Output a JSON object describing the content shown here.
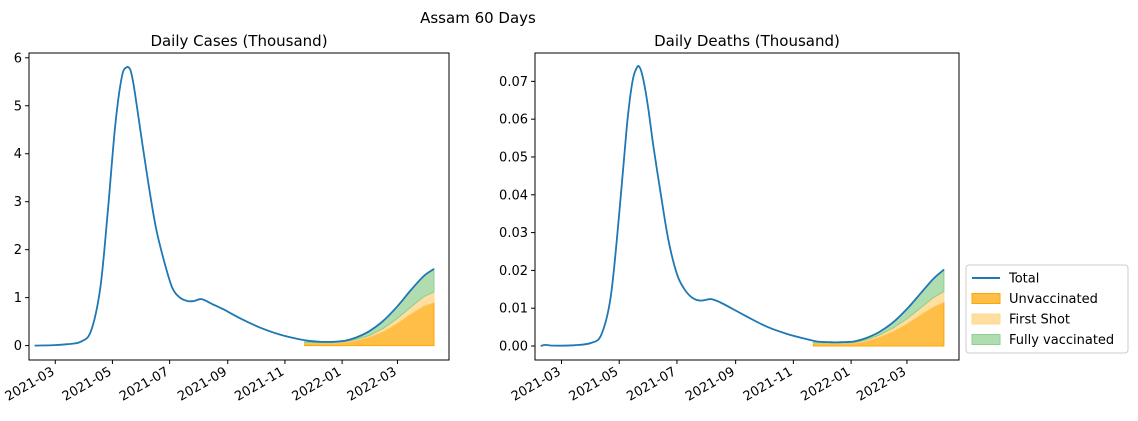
{
  "figure": {
    "suptitle": "Assam 60 Days"
  },
  "legend": {
    "placement": "right",
    "entries": [
      {
        "label": "Total",
        "color": "#1f77b4",
        "kind": "line"
      },
      {
        "label": "Unvaccinated",
        "color": "#ffa500",
        "kind": "patch"
      },
      {
        "label": "First Shot",
        "color": "#f5c26b",
        "kind": "patch"
      },
      {
        "label": "Fully vaccinated",
        "color": "#5cb85c",
        "kind": "patch"
      }
    ]
  },
  "colors": {
    "total": "#1f77b4",
    "unvaccinated": "#ffa500",
    "first_shot": "#ffd78a",
    "fully_vaccinated": "#8fcf8f"
  },
  "chart_data": [
    {
      "type": "line",
      "title": "Daily Cases (Thousand)",
      "xlabel": "",
      "ylabel": "",
      "x_is_date": true,
      "xlim": [
        "2021-02-01",
        "2022-04-25"
      ],
      "ylim": [
        -0.3,
        6.1
      ],
      "yticks": [
        0,
        1,
        2,
        3,
        4,
        5,
        6
      ],
      "ytick_labels": [
        "0",
        "1",
        "2",
        "3",
        "4",
        "5",
        "6"
      ],
      "xticks": [
        "2021-03-01",
        "2021-05-01",
        "2021-07-01",
        "2021-09-01",
        "2021-11-01",
        "2022-01-01",
        "2022-03-01"
      ],
      "xtick_labels": [
        "2021-03",
        "2021-05",
        "2021-07",
        "2021-09",
        "2021-11",
        "2022-01",
        "2022-03"
      ],
      "grid": false,
      "total": {
        "x": [
          "2021-02-07",
          "2021-02-28",
          "2021-03-14",
          "2021-03-28",
          "2021-04-08",
          "2021-04-18",
          "2021-04-26",
          "2021-05-04",
          "2021-05-11",
          "2021-05-16",
          "2021-05-20",
          "2021-05-23",
          "2021-05-27",
          "2021-06-02",
          "2021-06-09",
          "2021-06-17",
          "2021-06-26",
          "2021-07-04",
          "2021-07-12",
          "2021-07-20",
          "2021-07-27",
          "2021-08-04",
          "2021-08-14",
          "2021-08-28",
          "2021-09-15",
          "2021-10-05",
          "2021-10-25",
          "2021-11-12",
          "2021-11-26",
          "2021-12-09",
          "2021-12-22",
          "2022-01-04",
          "2022-01-16",
          "2022-01-30",
          "2022-02-14",
          "2022-03-01",
          "2022-03-15",
          "2022-03-29",
          "2022-04-09"
        ],
        "y": [
          0.0,
          0.01,
          0.03,
          0.08,
          0.3,
          1.2,
          2.8,
          4.6,
          5.6,
          5.8,
          5.75,
          5.5,
          5.0,
          4.2,
          3.3,
          2.4,
          1.7,
          1.2,
          1.0,
          0.93,
          0.93,
          0.97,
          0.88,
          0.75,
          0.56,
          0.38,
          0.24,
          0.15,
          0.1,
          0.08,
          0.08,
          0.1,
          0.17,
          0.3,
          0.52,
          0.82,
          1.15,
          1.45,
          1.6
        ]
      },
      "stack": {
        "x": [
          "2021-11-22",
          "2021-12-09",
          "2021-12-22",
          "2022-01-04",
          "2022-01-16",
          "2022-01-30",
          "2022-02-14",
          "2022-03-01",
          "2022-03-15",
          "2022-03-29",
          "2022-04-09"
        ],
        "unvaccinated": [
          0.05,
          0.05,
          0.05,
          0.07,
          0.11,
          0.18,
          0.3,
          0.47,
          0.66,
          0.83,
          0.9
        ],
        "first_shot": [
          0.01,
          0.01,
          0.01,
          0.01,
          0.02,
          0.03,
          0.06,
          0.1,
          0.14,
          0.19,
          0.22
        ],
        "fully_vaccinated": [
          0.02,
          0.02,
          0.02,
          0.02,
          0.04,
          0.09,
          0.16,
          0.25,
          0.35,
          0.43,
          0.48
        ]
      }
    },
    {
      "type": "line",
      "title": "Daily Deaths (Thousand)",
      "xlabel": "",
      "ylabel": "",
      "x_is_date": true,
      "xlim": [
        "2021-02-01",
        "2022-04-25"
      ],
      "ylim": [
        -0.0037,
        0.0775
      ],
      "yticks": [
        0,
        0.01,
        0.02,
        0.03,
        0.04,
        0.05,
        0.06,
        0.07
      ],
      "ytick_labels": [
        "0.00",
        "0.01",
        "0.02",
        "0.03",
        "0.04",
        "0.05",
        "0.06",
        "0.07"
      ],
      "xticks": [
        "2021-03-01",
        "2021-05-01",
        "2021-07-01",
        "2021-09-01",
        "2021-11-01",
        "2022-01-01",
        "2022-03-01"
      ],
      "xtick_labels": [
        "2021-03",
        "2021-05",
        "2021-07",
        "2021-09",
        "2021-11",
        "2022-01",
        "2022-03"
      ],
      "grid": false,
      "total": {
        "x": [
          "2021-02-07",
          "2021-02-12",
          "2021-02-20",
          "2021-03-14",
          "2021-04-01",
          "2021-04-12",
          "2021-04-22",
          "2021-05-01",
          "2021-05-09",
          "2021-05-15",
          "2021-05-20",
          "2021-05-23",
          "2021-05-26",
          "2021-05-31",
          "2021-06-06",
          "2021-06-14",
          "2021-06-22",
          "2021-07-01",
          "2021-07-09",
          "2021-07-17",
          "2021-07-26",
          "2021-08-06",
          "2021-08-16",
          "2021-08-29",
          "2021-09-15",
          "2021-10-05",
          "2021-10-25",
          "2021-11-12",
          "2021-11-26",
          "2021-12-09",
          "2021-12-22",
          "2022-01-04",
          "2022-01-16",
          "2022-01-30",
          "2022-02-14",
          "2022-03-01",
          "2022-03-15",
          "2022-03-29",
          "2022-04-09"
        ],
        "y": [
          0.0,
          0.0003,
          0.0001,
          0.0002,
          0.0008,
          0.003,
          0.013,
          0.035,
          0.058,
          0.07,
          0.0738,
          0.0735,
          0.071,
          0.064,
          0.053,
          0.04,
          0.028,
          0.019,
          0.015,
          0.0128,
          0.012,
          0.0124,
          0.0115,
          0.0098,
          0.0075,
          0.005,
          0.0032,
          0.002,
          0.0012,
          0.001,
          0.001,
          0.0012,
          0.002,
          0.0036,
          0.0062,
          0.0098,
          0.0138,
          0.0178,
          0.0202
        ]
      },
      "stack": {
        "x": [
          "2021-11-22",
          "2021-12-09",
          "2021-12-22",
          "2022-01-04",
          "2022-01-16",
          "2022-01-30",
          "2022-02-14",
          "2022-03-01",
          "2022-03-15",
          "2022-03-29",
          "2022-04-09"
        ],
        "unvaccinated": [
          0.0007,
          0.0007,
          0.0007,
          0.0008,
          0.0013,
          0.0023,
          0.0039,
          0.0059,
          0.0082,
          0.0104,
          0.0116
        ],
        "first_shot": [
          0.0001,
          0.0001,
          0.0001,
          0.0001,
          0.0003,
          0.0005,
          0.0008,
          0.0013,
          0.0018,
          0.0024,
          0.0028
        ],
        "fully_vaccinated": [
          0.0002,
          0.0002,
          0.0002,
          0.0003,
          0.0004,
          0.0008,
          0.0015,
          0.0026,
          0.0038,
          0.005,
          0.0058
        ]
      }
    }
  ]
}
